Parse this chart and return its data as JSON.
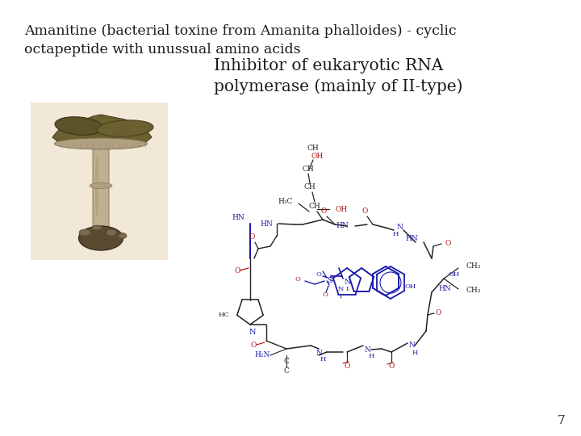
{
  "title_line1": "Amanitine (bacterial toxine from Amanita phalloides) - cyclic",
  "title_line2": "octapeptide with unussual amino acids",
  "inhibitor_line1": "Inhibitor of eukaryotic RNA",
  "inhibitor_line2": "polymerase (mainly of II-type)",
  "page_number": "7",
  "background_color": "#ffffff",
  "text_color": "#1a1a1a",
  "title_fontsize": 12.5,
  "inhibitor_fontsize": 14.5,
  "page_fontsize": 11,
  "dark_blue": "#1a1aaa",
  "dark_red": "#aa1111",
  "dark_gray": "#222222"
}
